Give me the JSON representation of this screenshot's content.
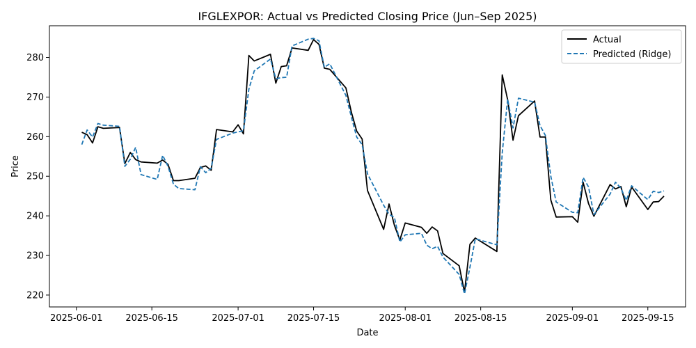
{
  "chart_data": {
    "type": "line",
    "title": "IFGLEXPOR: Actual vs Predicted Closing Price (Jun–Sep 2025)",
    "xlabel": "Date",
    "ylabel": "Price",
    "xlim": [
      "2025-05-27",
      "2025-09-22"
    ],
    "ylim": [
      217,
      288
    ],
    "x_ticks": [
      "2025-06-01",
      "2025-06-15",
      "2025-07-01",
      "2025-07-15",
      "2025-08-01",
      "2025-08-15",
      "2025-09-01",
      "2025-09-15"
    ],
    "y_ticks": [
      220,
      230,
      240,
      250,
      260,
      270,
      280
    ],
    "grid": false,
    "legend_position": "top-right",
    "series": [
      {
        "name": "Actual",
        "color": "#000000",
        "style": "solid",
        "points": [
          [
            "2025-06-02",
            261.1
          ],
          [
            "2025-06-03",
            260.5
          ],
          [
            "2025-06-04",
            258.4
          ],
          [
            "2025-06-05",
            262.5
          ],
          [
            "2025-06-06",
            262.1
          ],
          [
            "2025-06-09",
            262.3
          ],
          [
            "2025-06-10",
            253.2
          ],
          [
            "2025-06-11",
            256.0
          ],
          [
            "2025-06-12",
            254.2
          ],
          [
            "2025-06-13",
            253.6
          ],
          [
            "2025-06-16",
            253.3
          ],
          [
            "2025-06-17",
            254.1
          ],
          [
            "2025-06-18",
            253.0
          ],
          [
            "2025-06-19",
            248.9
          ],
          [
            "2025-06-20",
            248.9
          ],
          [
            "2025-06-23",
            249.5
          ],
          [
            "2025-06-24",
            252.2
          ],
          [
            "2025-06-25",
            252.6
          ],
          [
            "2025-06-26",
            251.5
          ],
          [
            "2025-06-27",
            261.8
          ],
          [
            "2025-06-30",
            261.2
          ],
          [
            "2025-07-01",
            263.0
          ],
          [
            "2025-07-02",
            260.7
          ],
          [
            "2025-07-03",
            280.5
          ],
          [
            "2025-07-04",
            279.1
          ],
          [
            "2025-07-07",
            280.8
          ],
          [
            "2025-07-08",
            273.5
          ],
          [
            "2025-07-09",
            277.7
          ],
          [
            "2025-07-10",
            277.9
          ],
          [
            "2025-07-11",
            282.4
          ],
          [
            "2025-07-14",
            281.8
          ],
          [
            "2025-07-15",
            284.5
          ],
          [
            "2025-07-16",
            283.3
          ],
          [
            "2025-07-17",
            277.3
          ],
          [
            "2025-07-18",
            277.0
          ],
          [
            "2025-07-21",
            272.3
          ],
          [
            "2025-07-22",
            266.2
          ],
          [
            "2025-07-23",
            261.4
          ],
          [
            "2025-07-24",
            259.4
          ],
          [
            "2025-07-25",
            246.4
          ],
          [
            "2025-07-28",
            236.6
          ],
          [
            "2025-07-29",
            243.0
          ],
          [
            "2025-07-30",
            237.6
          ],
          [
            "2025-07-31",
            233.9
          ],
          [
            "2025-08-01",
            238.2
          ],
          [
            "2025-08-04",
            237.1
          ],
          [
            "2025-08-05",
            235.6
          ],
          [
            "2025-08-06",
            237.2
          ],
          [
            "2025-08-07",
            236.2
          ],
          [
            "2025-08-08",
            230.5
          ],
          [
            "2025-08-11",
            227.4
          ],
          [
            "2025-08-12",
            220.7
          ],
          [
            "2025-08-13",
            232.8
          ],
          [
            "2025-08-14",
            234.4
          ],
          [
            "2025-08-18",
            231.0
          ],
          [
            "2025-08-19",
            275.6
          ],
          [
            "2025-08-20",
            269.3
          ],
          [
            "2025-08-21",
            259.1
          ],
          [
            "2025-08-22",
            265.3
          ],
          [
            "2025-08-25",
            269.0
          ],
          [
            "2025-08-26",
            259.9
          ],
          [
            "2025-08-27",
            259.9
          ],
          [
            "2025-08-28",
            244.0
          ],
          [
            "2025-08-29",
            239.7
          ],
          [
            "2025-09-01",
            239.8
          ],
          [
            "2025-09-02",
            238.4
          ],
          [
            "2025-09-03",
            248.5
          ],
          [
            "2025-09-04",
            243.1
          ],
          [
            "2025-09-05",
            239.9
          ],
          [
            "2025-09-08",
            247.9
          ],
          [
            "2025-09-09",
            246.8
          ],
          [
            "2025-09-10",
            247.4
          ],
          [
            "2025-09-11",
            242.3
          ],
          [
            "2025-09-12",
            247.3
          ],
          [
            "2025-09-15",
            241.6
          ],
          [
            "2025-09-16",
            243.5
          ],
          [
            "2025-09-17",
            243.6
          ],
          [
            "2025-09-18",
            245.0
          ]
        ]
      },
      {
        "name": "Predicted (Ridge)",
        "color": "#1f77b4",
        "style": "dashed",
        "points": [
          [
            "2025-06-02",
            258.0
          ],
          [
            "2025-06-03",
            261.7
          ],
          [
            "2025-06-04",
            259.9
          ],
          [
            "2025-06-05",
            263.3
          ],
          [
            "2025-06-06",
            262.9
          ],
          [
            "2025-06-09",
            262.6
          ],
          [
            "2025-06-10",
            252.5
          ],
          [
            "2025-06-11",
            254.3
          ],
          [
            "2025-06-12",
            257.3
          ],
          [
            "2025-06-13",
            250.4
          ],
          [
            "2025-06-16",
            249.2
          ],
          [
            "2025-06-17",
            255.3
          ],
          [
            "2025-06-18",
            252.5
          ],
          [
            "2025-06-19",
            248.0
          ],
          [
            "2025-06-20",
            246.9
          ],
          [
            "2025-06-23",
            246.6
          ],
          [
            "2025-06-24",
            252.4
          ],
          [
            "2025-06-25",
            250.9
          ],
          [
            "2025-06-26",
            252.0
          ],
          [
            "2025-06-27",
            259.3
          ],
          [
            "2025-06-30",
            260.9
          ],
          [
            "2025-07-01",
            261.2
          ],
          [
            "2025-07-02",
            261.5
          ],
          [
            "2025-07-03",
            272.0
          ],
          [
            "2025-07-04",
            276.6
          ],
          [
            "2025-07-07",
            279.6
          ],
          [
            "2025-07-08",
            274.6
          ],
          [
            "2025-07-09",
            274.9
          ],
          [
            "2025-07-10",
            275.0
          ],
          [
            "2025-07-11",
            282.9
          ],
          [
            "2025-07-14",
            284.6
          ],
          [
            "2025-07-15",
            284.8
          ],
          [
            "2025-07-16",
            284.2
          ],
          [
            "2025-07-17",
            277.5
          ],
          [
            "2025-07-18",
            278.4
          ],
          [
            "2025-07-21",
            270.4
          ],
          [
            "2025-07-22",
            265.0
          ],
          [
            "2025-07-23",
            259.9
          ],
          [
            "2025-07-24",
            258.0
          ],
          [
            "2025-07-25",
            250.6
          ],
          [
            "2025-07-28",
            242.7
          ],
          [
            "2025-07-29",
            240.4
          ],
          [
            "2025-07-30",
            239.6
          ],
          [
            "2025-07-31",
            233.4
          ],
          [
            "2025-08-01",
            235.2
          ],
          [
            "2025-08-04",
            235.6
          ],
          [
            "2025-08-05",
            232.6
          ],
          [
            "2025-08-06",
            231.7
          ],
          [
            "2025-08-07",
            232.3
          ],
          [
            "2025-08-08",
            229.6
          ],
          [
            "2025-08-11",
            225.2
          ],
          [
            "2025-08-12",
            220.3
          ],
          [
            "2025-08-13",
            227.0
          ],
          [
            "2025-08-14",
            234.2
          ],
          [
            "2025-08-18",
            232.7
          ],
          [
            "2025-08-19",
            255.9
          ],
          [
            "2025-08-20",
            269.5
          ],
          [
            "2025-08-21",
            262.2
          ],
          [
            "2025-08-22",
            269.7
          ],
          [
            "2025-08-25",
            268.7
          ],
          [
            "2025-08-26",
            262.8
          ],
          [
            "2025-08-27",
            260.3
          ],
          [
            "2025-08-28",
            250.0
          ],
          [
            "2025-08-29",
            243.5
          ],
          [
            "2025-09-01",
            240.9
          ],
          [
            "2025-09-02",
            240.8
          ],
          [
            "2025-09-03",
            249.7
          ],
          [
            "2025-09-04",
            247.3
          ],
          [
            "2025-09-05",
            240.3
          ],
          [
            "2025-09-08",
            245.5
          ],
          [
            "2025-09-09",
            248.5
          ],
          [
            "2025-09-10",
            247.0
          ],
          [
            "2025-09-11",
            243.9
          ],
          [
            "2025-09-12",
            247.6
          ],
          [
            "2025-09-15",
            244.1
          ],
          [
            "2025-09-16",
            246.2
          ],
          [
            "2025-09-17",
            245.9
          ],
          [
            "2025-09-18",
            246.3
          ]
        ]
      }
    ]
  }
}
